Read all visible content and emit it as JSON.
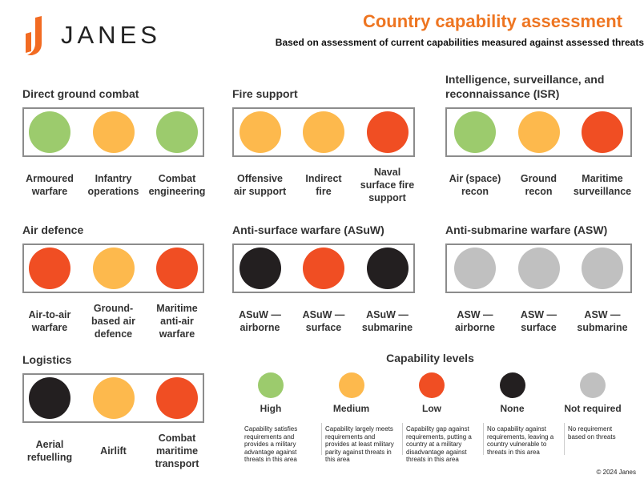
{
  "header": {
    "logo": "JANES",
    "title": "Country capability assessment",
    "subtitle": "Based on assessment of current capabilities measured against assessed threats"
  },
  "panels": [
    {
      "title": "Direct ground combat",
      "items": [
        {
          "label": "Armoured\nwarfare",
          "level": 0
        },
        {
          "label": "Infantry\noperations",
          "level": 1
        },
        {
          "label": "Combat\nengineering",
          "level": 0
        }
      ]
    },
    {
      "title": "Fire support",
      "items": [
        {
          "label": "Offensive\nair support",
          "level": 1
        },
        {
          "label": "Indirect\nfire",
          "level": 1
        },
        {
          "label": "Naval\nsurface fire\nsupport",
          "level": 2
        }
      ]
    },
    {
      "title": "Intelligence, surveillance, and reconnaissance (ISR)",
      "items": [
        {
          "label": "Air (space)\nrecon",
          "level": 0
        },
        {
          "label": "Ground\nrecon",
          "level": 1
        },
        {
          "label": "Maritime\nsurveillance",
          "level": 2
        }
      ]
    },
    {
      "title": "Air defence",
      "items": [
        {
          "label": "Air-to-air\nwarfare",
          "level": 2
        },
        {
          "label": "Ground-\nbased air\ndefence",
          "level": 1
        },
        {
          "label": "Maritime\nanti-air\nwarfare",
          "level": 2
        }
      ]
    },
    {
      "title": "Anti-surface warfare (ASuW)",
      "items": [
        {
          "label": "ASuW —\nairborne",
          "level": 3
        },
        {
          "label": "ASuW —\nsurface",
          "level": 2
        },
        {
          "label": "ASuW —\nsubmarine",
          "level": 3
        }
      ]
    },
    {
      "title": "Anti-submarine warfare (ASW)",
      "items": [
        {
          "label": "ASW —\nairborne",
          "level": 4
        },
        {
          "label": "ASW —\nsurface",
          "level": 4
        },
        {
          "label": "ASW —\nsubmarine",
          "level": 4
        }
      ]
    },
    {
      "title": "Logistics",
      "items": [
        {
          "label": "Aerial\nrefuelling",
          "level": 3
        },
        {
          "label": "Airlift",
          "level": 1
        },
        {
          "label": "Combat\nmaritime\ntransport",
          "level": 2
        }
      ]
    }
  ],
  "legend": {
    "title": "Capability levels",
    "levels": [
      {
        "name": "High",
        "color": "#9ccb6d",
        "description": "Capability satisfies requirements and provides a military advantage against threats in this area"
      },
      {
        "name": "Medium",
        "color": "#fdb94d",
        "description": "Capability largely meets requirements and provides at least military parity against threats in this area"
      },
      {
        "name": "Low",
        "color": "#f04e23",
        "description": "Capability gap against requirements, putting a country at a military disadvantage against threats in this area"
      },
      {
        "name": "None",
        "color": "#231f20",
        "description": "No capability against requirements, leaving a country vulnerable to threats in this area"
      },
      {
        "name": "Not required",
        "color": "#c0c0c0",
        "description": "No requirement based on threats"
      }
    ]
  },
  "footer": {
    "copyright": "© 2024 Janes"
  }
}
